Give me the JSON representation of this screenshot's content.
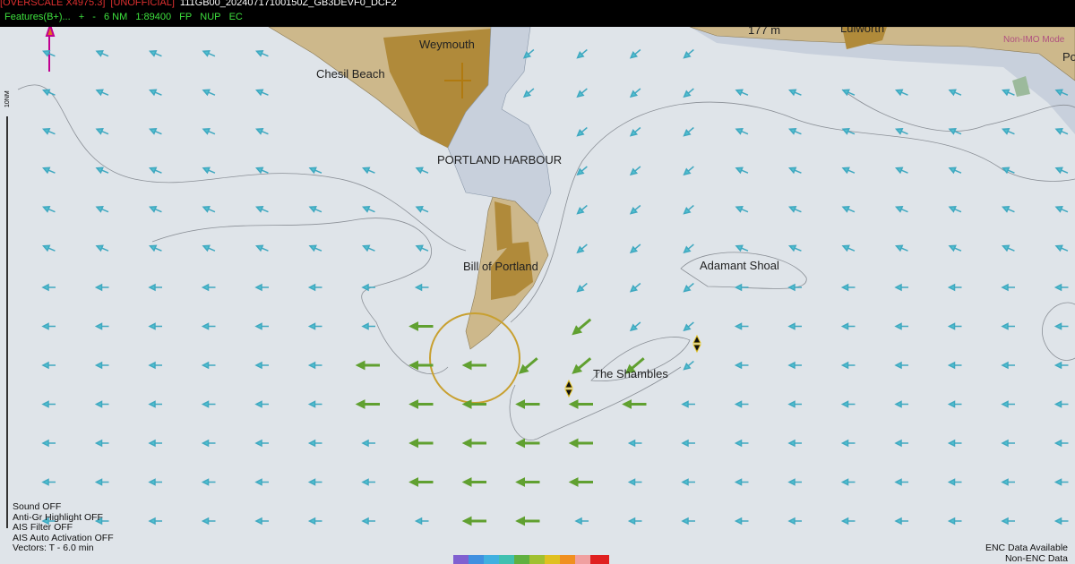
{
  "status_bar": {
    "overscale": "[OVERSCALE X4975.3]",
    "unofficial": "[UNOFFICIAL]",
    "cell": "111GB00_20240717100150Z_GB3DEVF0_DCF2"
  },
  "toolbar": {
    "features": "Features(B+)...",
    "zoom_in": "+",
    "zoom_out": "-",
    "range": "6 NM",
    "scale": "1:89400",
    "fp": "FP",
    "orientation": "NUP",
    "ec": "EC"
  },
  "map": {
    "labels": [
      "Weymouth",
      "Chesil Beach",
      "PORTLAND HARBOUR",
      "Bill of Portland",
      "Adamant Shoal",
      "The Shambles",
      "Lulworth",
      "Po"
    ],
    "depth": "177 m",
    "mode": "Non-IMO Mode",
    "scale_bar": "10NM"
  },
  "status_panel": {
    "lines": [
      "Sound OFF",
      "Anti-Gr Highlight OFF",
      "AIS Filter OFF",
      "AIS Auto Activation OFF",
      "Vectors: T - 6.0 min"
    ]
  },
  "legend": {
    "lines": [
      "ENC Data Available",
      "Non-ENC Data"
    ]
  }
}
